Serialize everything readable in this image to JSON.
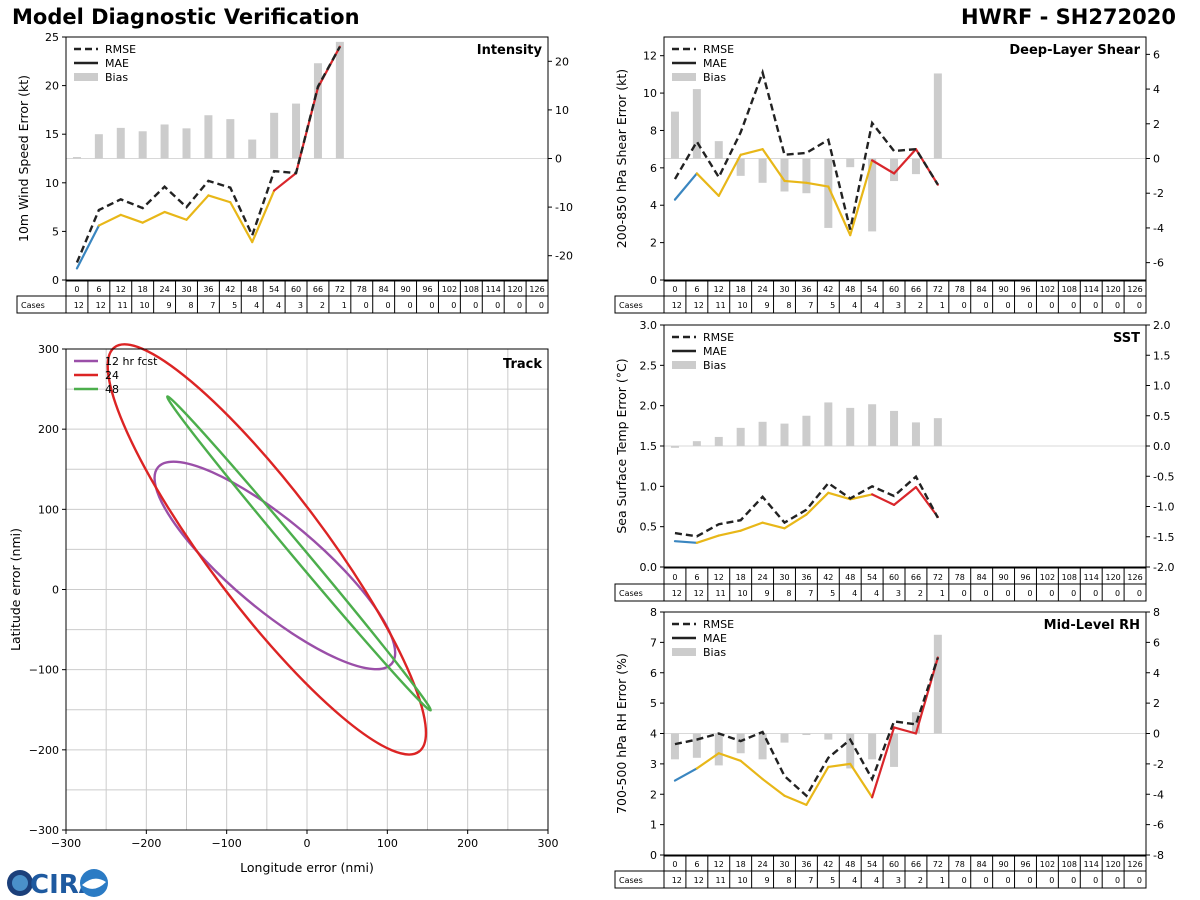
{
  "header": {
    "title": "Model Diagnostic Verification",
    "storm": "HWRF - SH272020"
  },
  "logo": {
    "text": "CIRA"
  },
  "colors": {
    "rmse": "#222222",
    "mae_blue": "#3a86c0",
    "mae_yellow": "#e8b718",
    "mae_red": "#d9262b",
    "bias": "#cccccc",
    "track_12": "#9a4fa8",
    "track_24": "#dc2424",
    "track_48": "#4cae4c",
    "grid": "#cccccc"
  },
  "cases": {
    "label": "Cases",
    "hours": [
      0,
      6,
      12,
      18,
      24,
      30,
      36,
      42,
      48,
      54,
      60,
      66,
      72,
      78,
      84,
      90,
      96,
      102,
      108,
      114,
      120,
      126
    ],
    "counts": [
      12,
      12,
      11,
      10,
      9,
      8,
      7,
      5,
      4,
      4,
      3,
      2,
      1,
      0,
      0,
      0,
      0,
      0,
      0,
      0,
      0,
      0
    ]
  },
  "legend": {
    "rmse": "RMSE",
    "mae": "MAE",
    "bias": "Bias"
  },
  "chart_data": [
    {
      "id": "intensity",
      "type": "line",
      "title": "Intensity",
      "ylabel": "10m Wind Speed Error (kt)",
      "ylim": [
        0,
        25
      ],
      "yticks": [
        0,
        5,
        10,
        15,
        20,
        25
      ],
      "y2lim": [
        -25,
        25
      ],
      "y2ticks": [
        -20,
        -10,
        0,
        10,
        20
      ],
      "x": [
        0,
        6,
        12,
        18,
        24,
        30,
        36,
        42,
        48,
        54,
        60,
        66,
        72
      ],
      "rmse": [
        1.8,
        7.2,
        8.3,
        7.4,
        9.6,
        7.5,
        10.2,
        9.5,
        4.6,
        11.2,
        11.0,
        19.9,
        24.0
      ],
      "mae": [
        1.2,
        5.6,
        6.7,
        5.9,
        7.0,
        6.2,
        8.7,
        8.0,
        3.9,
        9.2,
        11.0,
        19.8,
        24.0
      ],
      "bias": [
        0.3,
        5.0,
        6.3,
        5.6,
        7.0,
        6.2,
        8.9,
        8.1,
        3.9,
        9.4,
        11.3,
        19.6,
        24.0
      ]
    },
    {
      "id": "shear",
      "type": "line",
      "title": "Deep-Layer Shear",
      "ylabel": "200-850 hPa Shear Error (kt)",
      "ylim": [
        0,
        13
      ],
      "yticks": [
        0,
        2,
        4,
        6,
        8,
        10,
        12
      ],
      "y2lim": [
        -7,
        7
      ],
      "y2ticks": [
        -6,
        -4,
        -2,
        0,
        2,
        4,
        6
      ],
      "x": [
        0,
        6,
        12,
        18,
        24,
        30,
        36,
        42,
        48,
        54,
        60,
        66,
        72
      ],
      "rmse": [
        5.4,
        7.4,
        5.5,
        7.9,
        11.1,
        6.7,
        6.8,
        7.5,
        2.7,
        8.4,
        6.9,
        7.0,
        5.1
      ],
      "mae": [
        4.3,
        5.7,
        4.5,
        6.7,
        7.0,
        5.3,
        5.2,
        5.0,
        2.4,
        6.4,
        5.7,
        7.0,
        5.1
      ],
      "bias": [
        2.7,
        4.0,
        1.0,
        -1.0,
        -1.4,
        -1.9,
        -2.0,
        -4.0,
        -0.5,
        -4.2,
        -1.3,
        -0.9,
        4.9
      ]
    },
    {
      "id": "sst",
      "type": "line",
      "title": "SST",
      "ylabel": "Sea Surface Temp Error (°C)",
      "ylim": [
        0,
        3
      ],
      "yticks": [
        0.0,
        0.5,
        1.0,
        1.5,
        2.0,
        2.5,
        3.0
      ],
      "y2lim": [
        -2,
        2
      ],
      "y2ticks": [
        -2.0,
        -1.5,
        -1.0,
        -0.5,
        0.0,
        0.5,
        1.0,
        1.5,
        2.0
      ],
      "x": [
        0,
        6,
        12,
        18,
        24,
        30,
        36,
        42,
        48,
        54,
        60,
        66,
        72
      ],
      "rmse": [
        0.42,
        0.38,
        0.53,
        0.58,
        0.87,
        0.55,
        0.71,
        1.04,
        0.85,
        1.0,
        0.88,
        1.12,
        0.61
      ],
      "mae": [
        0.32,
        0.3,
        0.39,
        0.45,
        0.55,
        0.48,
        0.65,
        0.92,
        0.84,
        0.9,
        0.77,
        0.99,
        0.62
      ],
      "bias": [
        -0.03,
        0.08,
        0.15,
        0.3,
        0.4,
        0.37,
        0.5,
        0.72,
        0.63,
        0.69,
        0.58,
        0.39,
        0.46
      ]
    },
    {
      "id": "rh",
      "type": "line",
      "title": "Mid-Level RH",
      "ylabel": "700-500 hPa RH Error (%)",
      "ylim": [
        0,
        8
      ],
      "yticks": [
        0,
        1,
        2,
        3,
        4,
        5,
        6,
        7,
        8
      ],
      "y2lim": [
        -8,
        8
      ],
      "y2ticks": [
        -8,
        -6,
        -4,
        -2,
        0,
        2,
        4,
        6,
        8
      ],
      "x": [
        0,
        6,
        12,
        18,
        24,
        30,
        36,
        42,
        48,
        54,
        60,
        66,
        72
      ],
      "rmse": [
        3.65,
        3.8,
        4.0,
        3.75,
        4.05,
        2.6,
        1.95,
        3.2,
        3.8,
        2.5,
        4.4,
        4.3,
        6.5
      ],
      "mae": [
        2.45,
        2.85,
        3.35,
        3.1,
        2.5,
        1.95,
        1.65,
        2.9,
        3.0,
        1.9,
        4.2,
        4.0,
        6.5
      ],
      "bias": [
        -1.7,
        -1.6,
        -2.1,
        -1.3,
        -1.7,
        -0.6,
        -0.1,
        -0.4,
        -2.3,
        -1.7,
        -2.2,
        1.4,
        6.5
      ]
    },
    {
      "id": "track",
      "type": "scatter",
      "title": "Track",
      "xlabel": "Longitude error (nmi)",
      "ylabel": "Latitude error (nmi)",
      "xlim": [
        -300,
        300
      ],
      "ylim": [
        -300,
        300
      ],
      "ticks": [
        -300,
        -200,
        -100,
        0,
        100,
        200,
        300
      ],
      "ellipses": [
        {
          "label": "12 hr fcst",
          "cx": -40,
          "cy": 30,
          "rx": 190,
          "ry": 55,
          "angle": -40
        },
        {
          "label": "24",
          "cx": -50,
          "cy": 50,
          "rx": 315,
          "ry": 72,
          "angle": -53
        },
        {
          "label": "48",
          "cx": -10,
          "cy": 45,
          "rx": 255,
          "ry": 8,
          "angle": -50
        }
      ]
    }
  ]
}
